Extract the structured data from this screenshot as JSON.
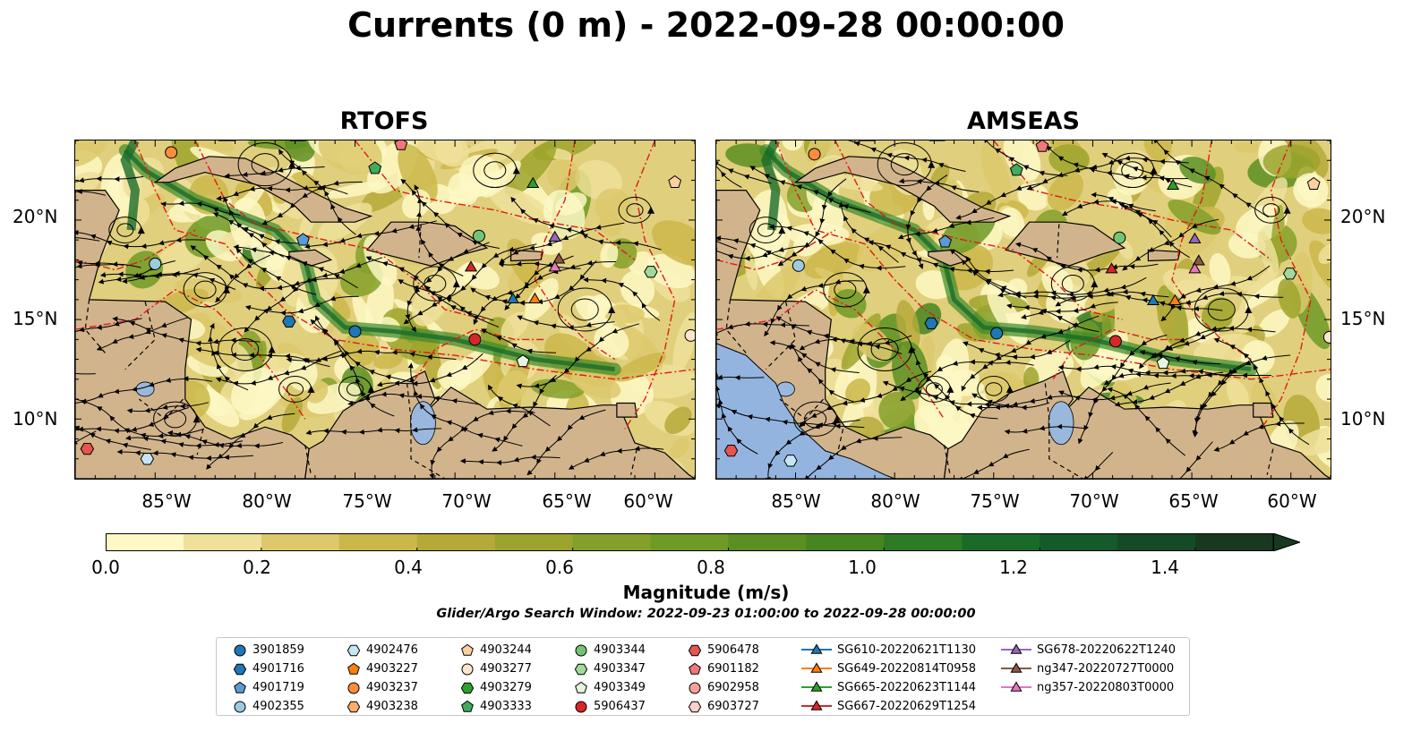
{
  "title": "Currents (0 m) - 2022-09-28 00:00:00",
  "panels": [
    {
      "title": "RTOFS"
    },
    {
      "title": "AMSEAS"
    }
  ],
  "lat_labels": [
    "20°N",
    "15°N",
    "10°N"
  ],
  "lon_labels": [
    "85°W",
    "80°W",
    "75°W",
    "70°W",
    "65°W",
    "60°W"
  ],
  "map_extent": {
    "lon": [
      -89,
      -58
    ],
    "lat": [
      7,
      24
    ]
  },
  "colorbar": {
    "label": "Magnitude (m/s)",
    "ticks": [
      "0.0",
      "0.2",
      "0.4",
      "0.6",
      "0.8",
      "1.0",
      "1.2",
      "1.4"
    ],
    "range": [
      0,
      1.5
    ],
    "colors": [
      "#fdf8c4",
      "#efe09a",
      "#ddc96c",
      "#cbb74a",
      "#b5a93a",
      "#9da42d",
      "#84a02a",
      "#6f9a26",
      "#5b8f22",
      "#468522",
      "#2f7a24",
      "#1a6b2a",
      "#145a2a",
      "#154a26",
      "#18391f"
    ]
  },
  "search_window": "Glider/Argo Search Window: 2022-09-23 01:00:00 to 2022-09-28 00:00:00",
  "legend": [
    {
      "label": "3901859",
      "marker": "circle",
      "color": "#1f77b4"
    },
    {
      "label": "4901716",
      "marker": "hexagon",
      "color": "#1f77b4"
    },
    {
      "label": "4901719",
      "marker": "pentagon",
      "color": "#5a9bd5"
    },
    {
      "label": "4902355",
      "marker": "circle",
      "color": "#9ecae1"
    },
    {
      "label": "4902476",
      "marker": "hexagon",
      "color": "#c6e6f5"
    },
    {
      "label": "4903227",
      "marker": "pentagon",
      "color": "#ff7f0e"
    },
    {
      "label": "4903237",
      "marker": "circle",
      "color": "#fd8d3c"
    },
    {
      "label": "4903238",
      "marker": "hexagon",
      "color": "#fdae6b"
    },
    {
      "label": "4903244",
      "marker": "pentagon",
      "color": "#fdd0a2"
    },
    {
      "label": "4903277",
      "marker": "circle",
      "color": "#fee6ce"
    },
    {
      "label": "4903279",
      "marker": "hexagon",
      "color": "#2ca02c"
    },
    {
      "label": "4903333",
      "marker": "pentagon",
      "color": "#41ab5d"
    },
    {
      "label": "4903344",
      "marker": "circle",
      "color": "#74c476"
    },
    {
      "label": "4903347",
      "marker": "hexagon",
      "color": "#a1d99b"
    },
    {
      "label": "4903349",
      "marker": "pentagon",
      "color": "#e5f5e0"
    },
    {
      "label": "5906437",
      "marker": "circle",
      "color": "#d62728"
    },
    {
      "label": "5906478",
      "marker": "hexagon",
      "color": "#e6554f"
    },
    {
      "label": "6901182",
      "marker": "pentagon",
      "color": "#f0787a"
    },
    {
      "label": "6902958",
      "marker": "circle",
      "color": "#f4a09c"
    },
    {
      "label": "6903727",
      "marker": "hexagon",
      "color": "#fcd0cc"
    },
    {
      "label": "SG610-20220621T1130",
      "marker": "triangle",
      "color": "#1f77b4"
    },
    {
      "label": "SG649-20220814T0958",
      "marker": "triangle",
      "color": "#ff7f0e"
    },
    {
      "label": "SG665-20220623T1144",
      "marker": "triangle",
      "color": "#2ca02c"
    },
    {
      "label": "SG667-20220629T1254",
      "marker": "triangle",
      "color": "#d62728"
    },
    {
      "label": "SG678-20220622T1240",
      "marker": "triangle",
      "color": "#9467bd"
    },
    {
      "label": "ng347-20220727T0000",
      "marker": "triangle",
      "color": "#8c564b"
    },
    {
      "label": "ng357-20220803T0000",
      "marker": "triangle",
      "color": "#e377c2"
    }
  ],
  "platforms": [
    {
      "id": "3901859",
      "lon": -75.0,
      "lat": 14.4
    },
    {
      "id": "4901716",
      "lon": -78.3,
      "lat": 14.9
    },
    {
      "id": "4901719",
      "lon": -77.6,
      "lat": 19.0
    },
    {
      "id": "4902355",
      "lon": -85.0,
      "lat": 17.8
    },
    {
      "id": "4902476",
      "lon": -85.4,
      "lat": 8.0
    },
    {
      "id": "4903237",
      "lon": -84.2,
      "lat": 23.4
    },
    {
      "id": "4903244",
      "lon": -59.0,
      "lat": 21.9
    },
    {
      "id": "4903277",
      "lon": -58.2,
      "lat": 14.2
    },
    {
      "id": "4903333",
      "lon": -74.0,
      "lat": 22.6
    },
    {
      "id": "4903344",
      "lon": -68.8,
      "lat": 19.2
    },
    {
      "id": "4903347",
      "lon": -60.2,
      "lat": 17.4
    },
    {
      "id": "4903349",
      "lon": -66.6,
      "lat": 12.9
    },
    {
      "id": "5906437",
      "lon": -69.0,
      "lat": 14.0
    },
    {
      "id": "5906478",
      "lon": -88.4,
      "lat": 8.5
    },
    {
      "id": "6901182",
      "lon": -72.7,
      "lat": 23.8
    },
    {
      "id": "SG610-20220621T1130",
      "lon": -67.1,
      "lat": 16.0
    },
    {
      "id": "SG649-20220814T0958",
      "lon": -66.0,
      "lat": 16.0
    },
    {
      "id": "SG665-20220623T1144",
      "lon": -66.1,
      "lat": 21.8
    },
    {
      "id": "SG667-20220629T1254",
      "lon": -69.2,
      "lat": 17.6
    },
    {
      "id": "SG678-20220622T1240",
      "lon": -65.0,
      "lat": 19.1
    },
    {
      "id": "ng347-20220727T0000",
      "lon": -64.8,
      "lat": 18.0
    },
    {
      "id": "ng357-20220803T0000",
      "lon": -65.0,
      "lat": 17.6
    }
  ]
}
